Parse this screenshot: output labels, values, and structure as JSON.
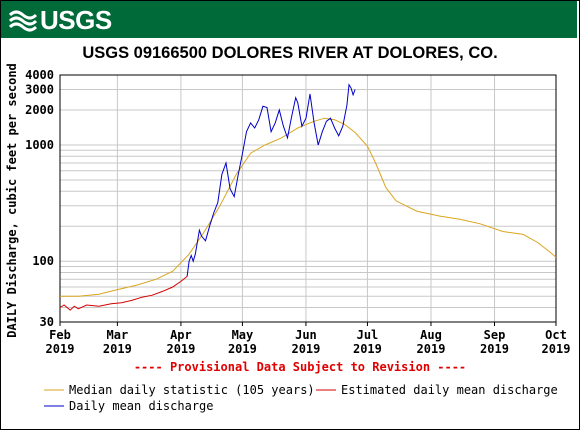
{
  "header": {
    "logo_text": "USGS"
  },
  "chart_data": {
    "type": "line",
    "title": "USGS 09166500 DOLORES RIVER AT DOLORES, CO.",
    "ylabel": "DAILY Discharge, cubic feet per second",
    "xlabel": "",
    "yscale": "log",
    "ylim": [
      30,
      4000
    ],
    "xlim": [
      "2019-02-01",
      "2019-10-01"
    ],
    "y_tick_labels": [
      "30",
      "100",
      "1000",
      "2000",
      "3000",
      "4000"
    ],
    "x_tick_labels": [
      {
        "month": "Feb",
        "year": "2019"
      },
      {
        "month": "Mar",
        "year": "2019"
      },
      {
        "month": "Apr",
        "year": "2019"
      },
      {
        "month": "May",
        "year": "2019"
      },
      {
        "month": "Jun",
        "year": "2019"
      },
      {
        "month": "Jul",
        "year": "2019"
      },
      {
        "month": "Aug",
        "year": "2019"
      },
      {
        "month": "Sep",
        "year": "2019"
      },
      {
        "month": "Oct",
        "year": "2019"
      }
    ],
    "grid": true,
    "annotation": "---- Provisional Data Subject to Revision ----",
    "legend_position": "bottom",
    "series": [
      {
        "name": "Median daily statistic (105 years)",
        "color": "#daa520",
        "points": [
          [
            "2019-02-01",
            50
          ],
          [
            "2019-02-10",
            50
          ],
          [
            "2019-02-20",
            52
          ],
          [
            "2019-03-01",
            57
          ],
          [
            "2019-03-10",
            62
          ],
          [
            "2019-03-20",
            70
          ],
          [
            "2019-03-28",
            82
          ],
          [
            "2019-04-05",
            115
          ],
          [
            "2019-04-12",
            175
          ],
          [
            "2019-04-20",
            300
          ],
          [
            "2019-04-28",
            560
          ],
          [
            "2019-05-05",
            850
          ],
          [
            "2019-05-12",
            1000
          ],
          [
            "2019-05-20",
            1150
          ],
          [
            "2019-05-28",
            1400
          ],
          [
            "2019-06-05",
            1600
          ],
          [
            "2019-06-10",
            1700
          ],
          [
            "2019-06-15",
            1650
          ],
          [
            "2019-06-20",
            1500
          ],
          [
            "2019-06-25",
            1280
          ],
          [
            "2019-07-01",
            980
          ],
          [
            "2019-07-05",
            700
          ],
          [
            "2019-07-10",
            430
          ],
          [
            "2019-07-15",
            330
          ],
          [
            "2019-07-25",
            270
          ],
          [
            "2019-08-05",
            245
          ],
          [
            "2019-08-15",
            230
          ],
          [
            "2019-08-25",
            210
          ],
          [
            "2019-09-05",
            180
          ],
          [
            "2019-09-15",
            170
          ],
          [
            "2019-09-22",
            145
          ],
          [
            "2019-09-28",
            120
          ],
          [
            "2019-10-01",
            108
          ]
        ]
      },
      {
        "name": "Estimated daily mean discharge",
        "color": "#d40000",
        "points": [
          [
            "2019-02-01",
            40
          ],
          [
            "2019-02-03",
            42
          ],
          [
            "2019-02-06",
            38
          ],
          [
            "2019-02-08",
            41
          ],
          [
            "2019-02-10",
            39
          ],
          [
            "2019-02-14",
            42
          ],
          [
            "2019-02-20",
            41
          ],
          [
            "2019-02-26",
            43
          ],
          [
            "2019-03-03",
            44
          ],
          [
            "2019-03-08",
            46
          ],
          [
            "2019-03-13",
            49
          ],
          [
            "2019-03-18",
            51
          ],
          [
            "2019-03-23",
            55
          ],
          [
            "2019-03-28",
            60
          ],
          [
            "2019-04-01",
            67
          ],
          [
            "2019-04-04",
            74
          ]
        ]
      },
      {
        "name": "Daily mean discharge",
        "color": "#0000c8",
        "points": [
          [
            "2019-04-04",
            74
          ],
          [
            "2019-04-05",
            100
          ],
          [
            "2019-04-06",
            112
          ],
          [
            "2019-04-07",
            100
          ],
          [
            "2019-04-08",
            115
          ],
          [
            "2019-04-10",
            185
          ],
          [
            "2019-04-11",
            165
          ],
          [
            "2019-04-13",
            150
          ],
          [
            "2019-04-15",
            200
          ],
          [
            "2019-04-17",
            260
          ],
          [
            "2019-04-19",
            320
          ],
          [
            "2019-04-21",
            560
          ],
          [
            "2019-04-23",
            700
          ],
          [
            "2019-04-25",
            420
          ],
          [
            "2019-04-27",
            360
          ],
          [
            "2019-04-29",
            560
          ],
          [
            "2019-05-01",
            840
          ],
          [
            "2019-05-03",
            1300
          ],
          [
            "2019-05-05",
            1550
          ],
          [
            "2019-05-07",
            1400
          ],
          [
            "2019-05-09",
            1650
          ],
          [
            "2019-05-11",
            2150
          ],
          [
            "2019-05-13",
            2100
          ],
          [
            "2019-05-15",
            1300
          ],
          [
            "2019-05-17",
            1550
          ],
          [
            "2019-05-19",
            2000
          ],
          [
            "2019-05-21",
            1450
          ],
          [
            "2019-05-23",
            1150
          ],
          [
            "2019-05-25",
            1750
          ],
          [
            "2019-05-27",
            2550
          ],
          [
            "2019-05-28",
            2300
          ],
          [
            "2019-05-30",
            1450
          ],
          [
            "2019-06-01",
            1700
          ],
          [
            "2019-06-03",
            2750
          ],
          [
            "2019-06-05",
            1550
          ],
          [
            "2019-06-07",
            1000
          ],
          [
            "2019-06-09",
            1300
          ],
          [
            "2019-06-11",
            1600
          ],
          [
            "2019-06-13",
            1700
          ],
          [
            "2019-06-15",
            1400
          ],
          [
            "2019-06-17",
            1200
          ],
          [
            "2019-06-19",
            1450
          ],
          [
            "2019-06-21",
            2200
          ],
          [
            "2019-06-22",
            3300
          ],
          [
            "2019-06-23",
            3100
          ],
          [
            "2019-06-24",
            2700
          ],
          [
            "2019-06-25",
            3000
          ]
        ]
      }
    ]
  }
}
